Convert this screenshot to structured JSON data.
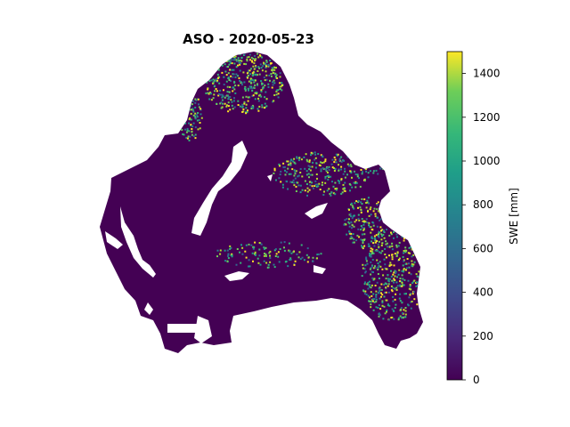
{
  "chart_data": {
    "type": "heatmap",
    "title": "ASO - 2020-05-23",
    "colorbar": {
      "label": "SWE [mm]",
      "range": [
        0,
        1500
      ],
      "ticks": [
        0,
        200,
        400,
        600,
        800,
        1000,
        1200,
        1400
      ],
      "colormap": "viridis"
    },
    "axes_visible": false,
    "grid": false
  },
  "colors": {
    "low": "#440154",
    "mid_low": "#3b528b",
    "mid": "#21918c",
    "mid_high": "#5ec962",
    "high": "#fde725",
    "background": "#ffffff"
  }
}
